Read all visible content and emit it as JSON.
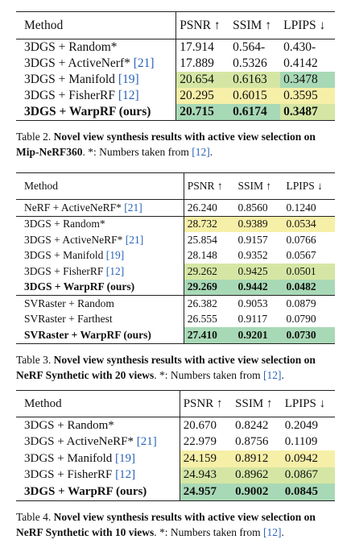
{
  "tables": [
    {
      "header": [
        "Method",
        "PSNR ↑",
        "SSIM ↑",
        "LPIPS ↓"
      ],
      "groups": [
        [
          {
            "method": "3DGS + Random*",
            "values": [
              "17.914",
              "0.564-",
              "0.430-"
            ],
            "colors": [
              null,
              null,
              null
            ]
          },
          {
            "method": "3DGS + ActiveNerf*",
            "ref": "[21]",
            "values": [
              "17.889",
              "0.5326",
              "0.4142"
            ],
            "colors": [
              null,
              null,
              null
            ]
          },
          {
            "method": "3DGS + Manifold",
            "ref": "[19]",
            "values": [
              "20.654",
              "0.6163",
              "0.3478"
            ],
            "colors": [
              "#d5e6a4",
              "#d5e6a4",
              "#a8d9b6"
            ]
          },
          {
            "method": "3DGS + FisherRF",
            "ref": "[12]",
            "values": [
              "20.295",
              "0.6015",
              "0.3595"
            ],
            "colors": [
              "#f6efa8",
              "#f6efa8",
              "#f6efa8"
            ]
          },
          {
            "method": "3DGS + WarpRF (ours)",
            "bold": true,
            "values": [
              "20.715",
              "0.6174",
              "0.3487"
            ],
            "colors": [
              "#a8d9b6",
              "#a8d9b6",
              "#d5e6a4"
            ]
          }
        ]
      ],
      "caption": [
        {
          "text": "Table 2. "
        },
        {
          "text": "Novel view synthesis results with active view selection on Mip-NeRF360",
          "bold": true
        },
        {
          "text": ". *: Numbers taken from "
        },
        {
          "text": "[12]",
          "ref": true
        },
        {
          "text": "."
        }
      ]
    },
    {
      "header": [
        "Method",
        "PSNR ↑",
        "SSIM ↑",
        "LPIPS ↓"
      ],
      "groups": [
        [
          {
            "method": "NeRF + ActiveNeRF*",
            "ref": "[21]",
            "values": [
              "26.240",
              "0.8560",
              "0.1240"
            ],
            "colors": [
              null,
              null,
              null
            ]
          }
        ],
        [
          {
            "method": "3DGS + Random*",
            "values": [
              "28.732",
              "0.9389",
              "0.0534"
            ],
            "colors": [
              "#f6efa8",
              "#f6efa8",
              "#f6efa8"
            ]
          },
          {
            "method": "3DGS + ActiveNeRF*",
            "ref": "[21]",
            "values": [
              "25.854",
              "0.9157",
              "0.0766"
            ],
            "colors": [
              null,
              null,
              null
            ]
          },
          {
            "method": "3DGS + Manifold",
            "ref": "[19]",
            "values": [
              "28.148",
              "0.9352",
              "0.0567"
            ],
            "colors": [
              null,
              null,
              null
            ]
          },
          {
            "method": "3DGS + FisherRF",
            "ref": "[12]",
            "values": [
              "29.262",
              "0.9425",
              "0.0501"
            ],
            "colors": [
              "#d5e6a4",
              "#d5e6a4",
              "#d5e6a4"
            ]
          },
          {
            "method": "3DGS + WarpRF (ours)",
            "bold": true,
            "values": [
              "29.269",
              "0.9442",
              "0.0482"
            ],
            "colors": [
              "#a8d9b6",
              "#a8d9b6",
              "#a8d9b6"
            ]
          }
        ],
        [
          {
            "method": "SVRaster + Random",
            "values": [
              "26.382",
              "0.9053",
              "0.0879"
            ],
            "colors": [
              null,
              null,
              null
            ]
          },
          {
            "method": "SVRaster + Farthest",
            "values": [
              "26.555",
              "0.9117",
              "0.0790"
            ],
            "colors": [
              null,
              null,
              null
            ]
          },
          {
            "method": "SVRaster + WarpRF (ours)",
            "bold": true,
            "values": [
              "27.410",
              "0.9201",
              "0.0730"
            ],
            "colors": [
              "#a8d9b6",
              "#a8d9b6",
              "#a8d9b6"
            ]
          }
        ]
      ],
      "caption": [
        {
          "text": "Table 3. "
        },
        {
          "text": "Novel view synthesis results with active view selection on NeRF Synthetic with 20 views",
          "bold": true
        },
        {
          "text": ". *: Numbers taken from "
        },
        {
          "text": "[12]",
          "ref": true
        },
        {
          "text": "."
        }
      ]
    },
    {
      "header": [
        "Method",
        "PSNR ↑",
        "SSIM ↑",
        "LPIPS ↓"
      ],
      "groups": [
        [
          {
            "method": "3DGS + Random*",
            "values": [
              "20.670",
              "0.8242",
              "0.2049"
            ],
            "colors": [
              null,
              null,
              null
            ]
          },
          {
            "method": "3DGS + ActiveNeRF*",
            "ref": "[21]",
            "values": [
              "22.979",
              "0.8756",
              "0.1109"
            ],
            "colors": [
              null,
              null,
              null
            ]
          },
          {
            "method": "3DGS + Manifold",
            "ref": "[19]",
            "values": [
              "24.159",
              "0.8912",
              "0.0942"
            ],
            "colors": [
              "#f6efa8",
              "#f6efa8",
              "#f6efa8"
            ]
          },
          {
            "method": "3DGS + FisherRF",
            "ref": "[12]",
            "values": [
              "24.943",
              "0.8962",
              "0.0867"
            ],
            "colors": [
              "#d5e6a4",
              "#d5e6a4",
              "#d5e6a4"
            ]
          },
          {
            "method": "3DGS + WarpRF (ours)",
            "bold": true,
            "values": [
              "24.957",
              "0.9002",
              "0.0845"
            ],
            "colors": [
              "#a8d9b6",
              "#a8d9b6",
              "#a8d9b6"
            ]
          }
        ]
      ],
      "caption": [
        {
          "text": "Table 4. "
        },
        {
          "text": "Novel view synthesis results with active view selection on NeRF Synthetic with 10 views",
          "bold": true
        },
        {
          "text": ". *: Numbers taken from "
        },
        {
          "text": "[12]",
          "ref": true
        },
        {
          "text": "."
        }
      ]
    }
  ]
}
